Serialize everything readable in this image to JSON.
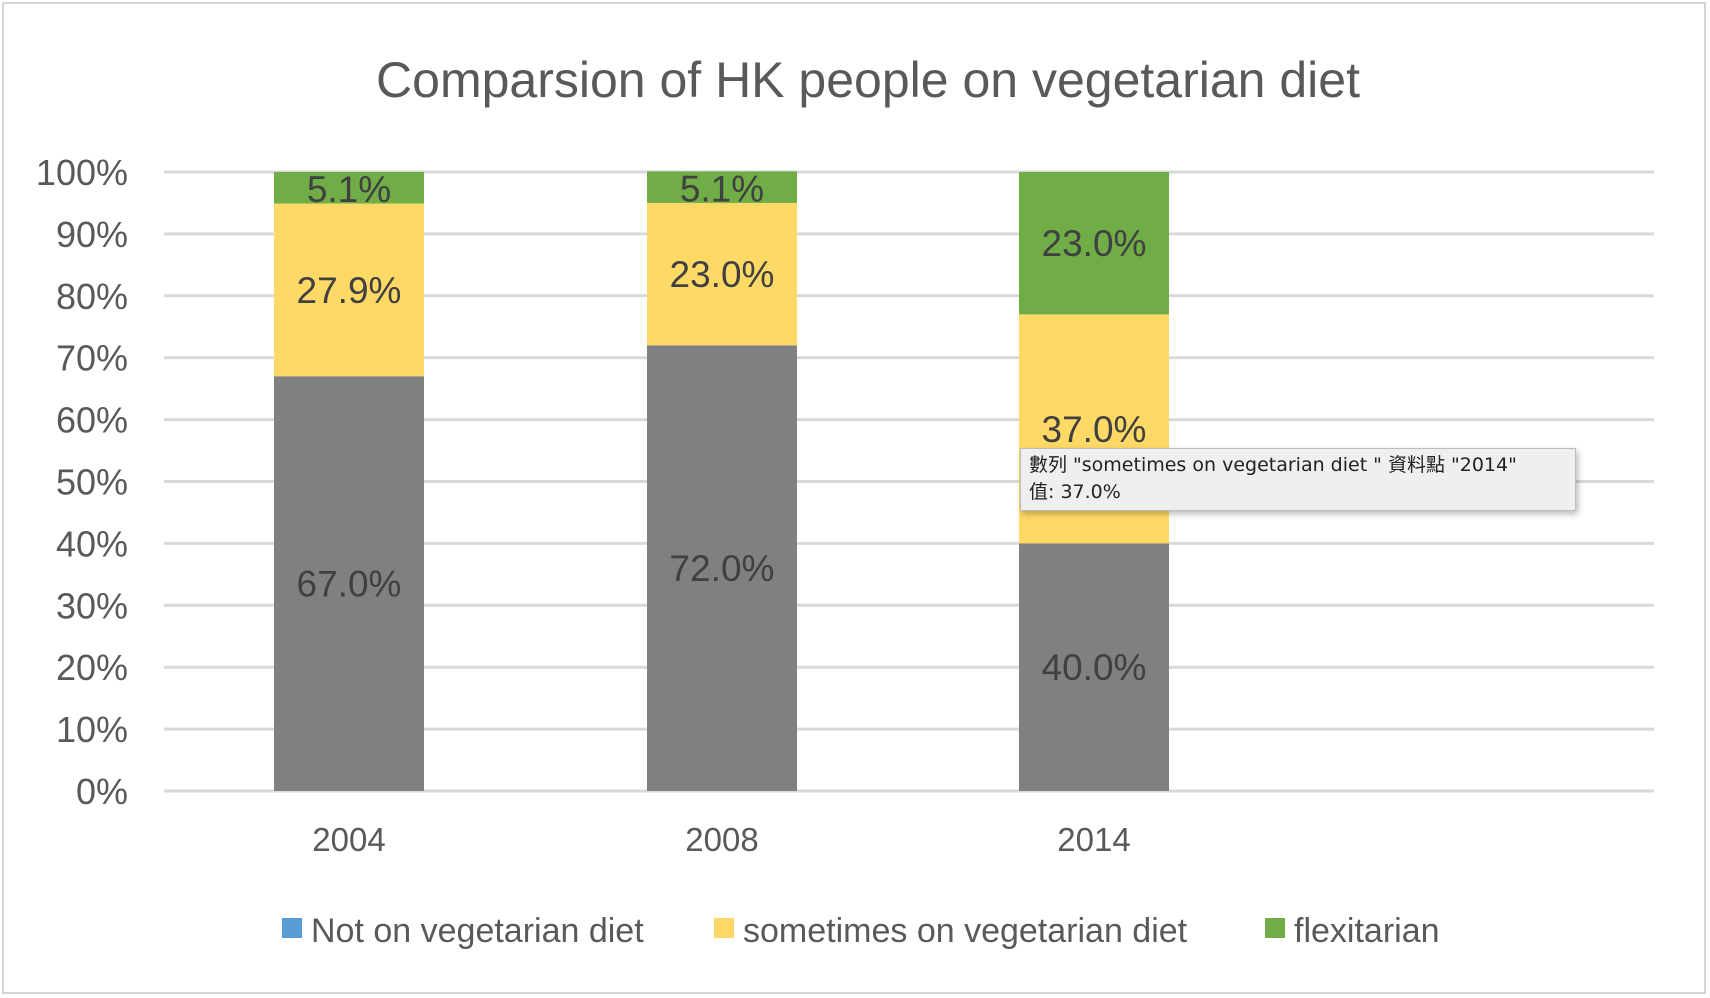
{
  "chart_data": {
    "type": "bar",
    "stacked": true,
    "percent": true,
    "title": "Comparsion of HK people on vegetarian diet",
    "categories": [
      "2004",
      "2008",
      "2014"
    ],
    "series": [
      {
        "name": "Not on vegetarian diet",
        "values": [
          67.0,
          72.0,
          40.0
        ],
        "labels": [
          "67.0%",
          "72.0%",
          "40.0%"
        ],
        "color": "#808080",
        "legend_color": "#5b9bd5"
      },
      {
        "name": "sometimes on vegetarian diet",
        "values": [
          27.9,
          23.0,
          37.0
        ],
        "labels": [
          "27.9%",
          "23.0%",
          "37.0%"
        ],
        "color": "#ffd966",
        "legend_color": "#ffd966"
      },
      {
        "name": "flexitarian",
        "values": [
          5.1,
          5.1,
          23.0
        ],
        "labels": [
          "5.1%",
          "5.1%",
          "23.0%"
        ],
        "color": "#70ad47",
        "legend_color": "#70ad47"
      }
    ],
    "yticks": [
      "0%",
      "10%",
      "20%",
      "30%",
      "40%",
      "50%",
      "60%",
      "70%",
      "80%",
      "90%",
      "100%"
    ],
    "ylim": [
      0,
      100
    ],
    "grid": true,
    "legend_position": "bottom"
  },
  "tooltip": {
    "line1": "數列 \"sometimes on vegetarian diet \" 資料點 \"2014\"",
    "line2": "值: 37.0%"
  }
}
